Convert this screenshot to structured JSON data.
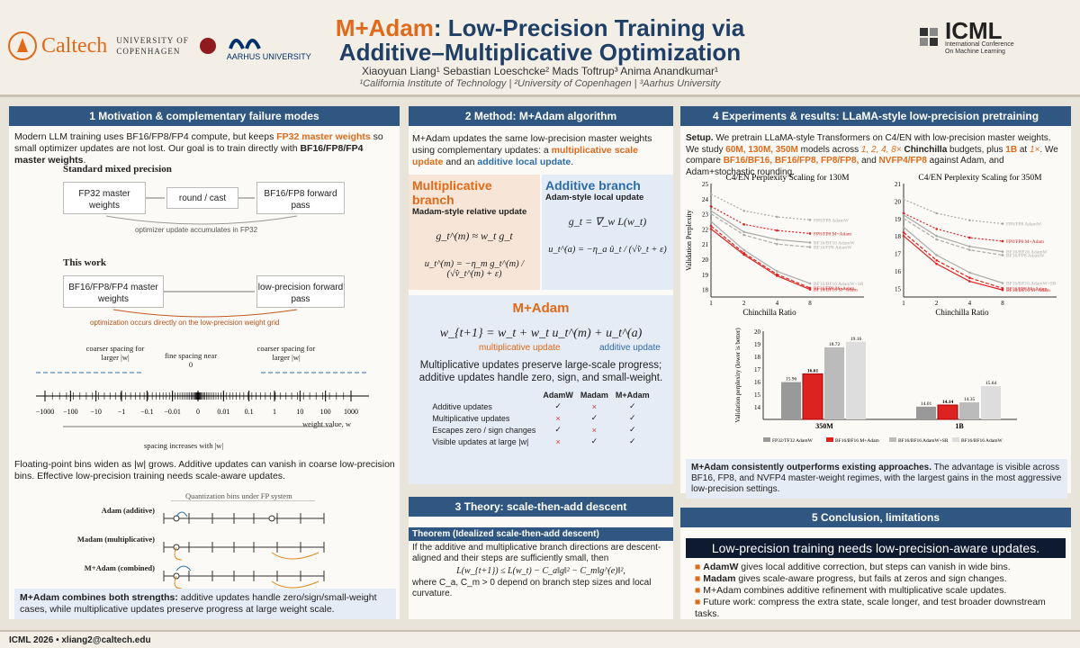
{
  "header": {
    "title_accent": "M+Adam",
    "title_rest": ": Low-Precision Training via",
    "title_line2": "Additive–Multiplicative Optimization",
    "authors": "Xiaoyuan Liang¹   Sebastian Loeschcke²   Mads Toftrup³   Anima Anandkumar¹",
    "affils": "¹California Institute of Technology   |   ²University of Copenhagen   |   ³Aarhus University",
    "logo_caltech": "Caltech",
    "logo_ucph1": "UNIVERSITY OF",
    "logo_ucph2": "COPENHAGEN",
    "logo_au": "AARHUS UNIVERSITY",
    "icml": "ICML",
    "icml_sub1": "International Conference",
    "icml_sub2": "On Machine Learning"
  },
  "s1": {
    "title": "1   Motivation & complementary failure modes",
    "p1a": "Modern LLM training uses BF16/FP8/FP4 compute, but keeps ",
    "p1b": "FP32 master weights",
    "p1c": " so small optimizer updates are not lost. Our goal is to train directly with ",
    "p1d": "BF16/FP8/FP4 master weights",
    "std": "Standard mixed precision",
    "box1": "FP32 master weights",
    "box2": "round / cast",
    "box3": "BF16/FP8 forward pass",
    "note1": "optimizer update accumulates in FP32",
    "this": "This work",
    "box4": "BF16/FP8/FP4 master weights",
    "box5": "low-precision forward pass",
    "note2": "optimization occurs directly on the low-precision weight grid",
    "coarseL": "coarser spacing for larger |w|",
    "fine": "fine spacing near 0",
    "coarseR": "coarser spacing for larger |w|",
    "ticks": [
      "−1000",
      "−100",
      "−10",
      "−1",
      "−0.1",
      "−0.01",
      "0",
      "0.01",
      "0.1",
      "1",
      "10",
      "100",
      "1000"
    ],
    "axis": "weight value, w",
    "spacing": "spacing increases with |w|",
    "p2": "Floating-point bins widen as |w| grows. Additive updates can vanish in coarse low-precision bins. Effective low-precision training needs scale-aware updates.",
    "qtitle": "Quantization bins under FP system",
    "qa": "Adam (additive)",
    "qm": "Madam (multiplicative)",
    "qc": "M+Adam (combined)",
    "hla": "M+Adam combines both strengths:",
    "hlb": " additive updates handle zero/sign/small-weight cases, while multiplicative updates preserve progress at large weight scale."
  },
  "s2": {
    "title": "2   Method: M+Adam algorithm",
    "p1a": "M+Adam updates the same low-precision master weights using complementary updates: a ",
    "p1b": "multiplicative scale update",
    "p1c": " and an ",
    "p1d": "additive local update",
    "p1e": ".",
    "mtitle": "Multiplicative branch",
    "msub": "Madam-style relative update",
    "atitle": "Additive branch",
    "asub": "Adam-style local update",
    "eq1": "g_t^(m) ≈ w_t g_t",
    "eq2": "u_t^(m) = −η_m g_t^(m) / (√v̂_t^(m) + ε)",
    "eq3": "g_t = ∇_w L(w_t)",
    "eq4": "u_t^(a) = −η_a û_t / (√v̂_t + ε)",
    "mp": "M+Adam",
    "upd": "w_{t+1} = w_t + w_t u_t^(m) + u_t^(a)",
    "ml": "multiplicative update",
    "al": "additive update",
    "pres": "Multiplicative updates preserve large-scale progress; additive updates handle zero, sign, and small-weight.",
    "cols": [
      "",
      "AdamW",
      "Madam",
      "M+Adam"
    ],
    "rows": [
      [
        "Additive updates",
        "✓",
        "×",
        "✓"
      ],
      [
        "Multiplicative updates",
        "×",
        "✓",
        "✓"
      ],
      [
        "Escapes zero / sign changes",
        "✓",
        "×",
        "✓"
      ],
      [
        "Visible updates at large |w|",
        "×",
        "✓",
        "✓"
      ]
    ]
  },
  "s3": {
    "title": "3   Theory: scale-then-add descent",
    "thm": "Theorem (Idealized scale-then-add descent)",
    "p1": "If the additive and multiplicative branch directions are descent-aligned and their steps are sufficiently small, then",
    "eq": "L(w_{t+1}) ≤ L(w_t) − C_a‖g‖² − C_m‖g^(e)‖²,",
    "p2": "where C_a, C_m > 0 depend on branch step sizes and local curvature."
  },
  "s4": {
    "title": "4   Experiments & results: LLaMA-style low-precision pretraining",
    "pa": "Setup.",
    "pb": " We pretrain LLaMA-style Transformers on C4/EN with low-precision master weights. We study ",
    "pc": "60M, 130M, 350M",
    "pd": " models across ",
    "pe": "1, 2, 4, 8×",
    "pf": " Chinchilla",
    "pg": " budgets, plus ",
    "ph": "1B",
    "pi": " at ",
    "pj": "1×",
    "pk": ". We compare ",
    "pl": "BF16/BF16, BF16/FP8, FP8/FP8,",
    "pm": " and ",
    "pn": "NVFP4/FP8",
    "po": " against Adam, and Adam+stochastic rounding.",
    "res_a": "M+Adam consistently outperforms existing approaches.",
    "res_b": " The advantage is visible across BF16, FP8, and NVFP4 master-weight regimes, with the largest gains in the most aggressive low-precision settings."
  },
  "s5": {
    "title": "5   Conclusion, limitations",
    "banner": "Low-precision training needs low-precision-aware updates.",
    "b1a": "AdamW",
    "b1b": " gives local additive correction, but steps can vanish in wide bins.",
    "b2a": "Madam",
    "b2b": " gives scale-aware progress, but fails at zeros and sign changes.",
    "b3": "M+Adam combines additive refinement with multiplicative scale updates.",
    "b4": "Future work: compress the extra state, scale longer, and test broader downstream tasks."
  },
  "footer": {
    "conf": "ICML 2026",
    "email": "xliang2@caltech.edu"
  },
  "chart_data": [
    {
      "type": "line",
      "title": "C4/EN Perplexity Scaling for 130M",
      "xlabel": "Chinchilla Ratio",
      "ylabel": "Validation Perplexity",
      "x": [
        1,
        2,
        4,
        8
      ],
      "ylim": [
        17.5,
        25
      ],
      "series": [
        {
          "name": "FP8/FP8 AdamW",
          "values": [
            24.3,
            23.2,
            22.8,
            22.6
          ]
        },
        {
          "name": "FP8/FP8 M+Adam",
          "values": [
            23.5,
            22.3,
            21.9,
            21.7
          ]
        },
        {
          "name": "BF16/BF16 AdamW",
          "values": [
            23.2,
            21.8,
            21.3,
            21.1
          ]
        },
        {
          "name": "BF16/FP8 AdamW",
          "values": [
            23.0,
            21.6,
            21.0,
            20.8
          ]
        },
        {
          "name": "BF16/BF16 AdamW+SR",
          "values": [
            22.5,
            20.6,
            19.2,
            18.4
          ]
        },
        {
          "name": "BF16/FP8 M+Adam",
          "values": [
            22.2,
            20.4,
            19.0,
            18.1
          ]
        },
        {
          "name": "BF16/BF16 M+Adam",
          "values": [
            22.0,
            20.3,
            18.9,
            18.0
          ]
        }
      ]
    },
    {
      "type": "line",
      "title": "C4/EN Perplexity Scaling for 350M",
      "xlabel": "Chinchilla Ratio",
      "ylabel": "",
      "x": [
        1,
        2,
        4,
        8
      ],
      "ylim": [
        14.5,
        21
      ],
      "series": [
        {
          "name": "FP8/FP8 AdamW",
          "values": [
            20.1,
            19.3,
            18.9,
            18.7
          ]
        },
        {
          "name": "FP8/FP8 M+Adam",
          "values": [
            19.3,
            18.4,
            17.9,
            17.7
          ]
        },
        {
          "name": "BF16/BF16 AdamW",
          "values": [
            19.2,
            18.0,
            17.4,
            17.1
          ]
        },
        {
          "name": "BF16/FP8 AdamW",
          "values": [
            19.0,
            17.8,
            17.2,
            16.9
          ]
        },
        {
          "name": "BF16/BF16 AdamW+SR",
          "values": [
            18.5,
            16.9,
            15.9,
            15.3
          ]
        },
        {
          "name": "BF16/FP8 M+Adam",
          "values": [
            18.2,
            16.6,
            15.6,
            15.0
          ]
        },
        {
          "name": "BF16/BF16 M+Adam",
          "values": [
            18.0,
            16.4,
            15.4,
            14.9
          ]
        }
      ]
    },
    {
      "type": "bar",
      "categories": [
        "350M",
        "1B"
      ],
      "ylabel": "Validation perplexity (lower is better)",
      "ylim": [
        13,
        20
      ],
      "series": [
        {
          "name": "FP32/TF32 AdamW",
          "values": [
            15.96,
            14.01
          ]
        },
        {
          "name": "BF16/BF16 M+Adam",
          "values": [
            16.61,
            14.14
          ]
        },
        {
          "name": "BF16/BF16 AdamW+SR",
          "values": [
            18.72,
            14.35
          ]
        },
        {
          "name": "BF16/BF16 AdamW",
          "values": [
            19.16,
            15.64
          ]
        }
      ]
    }
  ]
}
